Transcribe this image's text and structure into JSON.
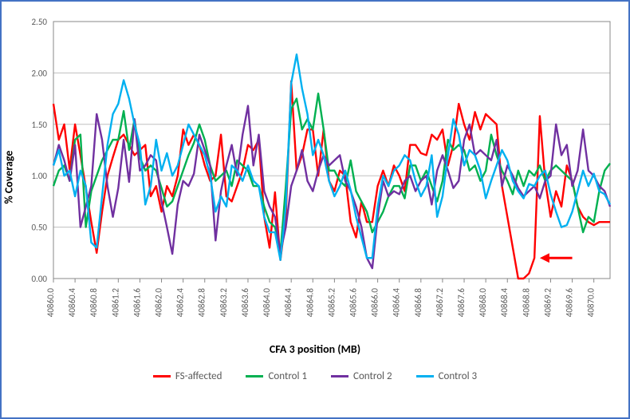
{
  "chart": {
    "type": "line",
    "xlabel": "CFA 3 position (MB)",
    "ylabel": "% Coverage",
    "ylim": [
      0.0,
      2.5
    ],
    "ytick_step": 0.5,
    "yticks": [
      "0.00",
      "0.50",
      "1.00",
      "1.50",
      "2.00",
      "2.50"
    ],
    "x_categories": [
      "40860.0",
      "40860.4",
      "40860.8",
      "40861.2",
      "40861.6",
      "40862.0",
      "40862.4",
      "40862.8",
      "40863.2",
      "40863.6",
      "40864.0",
      "40864.4",
      "40864.8",
      "40865.2",
      "40865.6",
      "40866.0",
      "40866.4",
      "40866.8",
      "40867.2",
      "40867.6",
      "40868.0",
      "40868.4",
      "40868.8",
      "40869.2",
      "40869.6",
      "40870.0"
    ],
    "x_points_per_label": 4,
    "label_fontsize": 14,
    "tick_fontsize": 11,
    "tick_color": "#595959",
    "background_color": "#ffffff",
    "grid_color": "#bfbfbf",
    "border_color": "#888888",
    "outer_border_color": "#4472c4",
    "line_width": 2.4,
    "legend_position": "bottom",
    "arrow": {
      "x_index": 90,
      "y": 0.2,
      "length": 6,
      "color": "#ff0000"
    },
    "series": [
      {
        "name": "FS-affected",
        "color": "#ff0000",
        "values": [
          1.7,
          1.35,
          1.5,
          1.06,
          1.5,
          1.2,
          0.88,
          0.55,
          0.25,
          0.65,
          1.0,
          1.18,
          1.35,
          1.4,
          1.3,
          1.2,
          1.25,
          1.3,
          0.8,
          0.9,
          0.65,
          0.9,
          0.8,
          1.0,
          1.45,
          1.3,
          1.4,
          1.3,
          1.1,
          0.95,
          1.0,
          1.4,
          0.8,
          0.75,
          0.9,
          1.05,
          1.3,
          1.25,
          1.35,
          0.6,
          0.3,
          0.84,
          0.18,
          0.6,
          1.92,
          1.05,
          1.2,
          1.45,
          1.45,
          1.0,
          1.45,
          0.95,
          0.85,
          1.05,
          1.0,
          0.55,
          0.4,
          0.75,
          0.55,
          0.55,
          0.9,
          1.05,
          0.9,
          1.1,
          1.0,
          0.85,
          1.3,
          1.3,
          1.22,
          1.2,
          1.4,
          1.35,
          1.45,
          1.1,
          1.3,
          1.7,
          1.5,
          1.35,
          1.62,
          1.45,
          1.6,
          1.55,
          1.5,
          0.9,
          0.6,
          0.3,
          0.0,
          0.0,
          0.05,
          0.2,
          1.58,
          0.95,
          0.6,
          0.85,
          0.7,
          1.1,
          0.95,
          0.7,
          0.6,
          0.55,
          0.52,
          0.55,
          0.55,
          0.55
        ]
      },
      {
        "name": "Control 1",
        "color": "#00b050",
        "values": [
          0.9,
          1.05,
          1.1,
          0.95,
          1.35,
          1.4,
          0.5,
          0.85,
          1.0,
          1.15,
          1.25,
          1.35,
          1.35,
          1.63,
          1.25,
          1.55,
          1.18,
          1.05,
          1.1,
          1.05,
          0.88,
          0.7,
          0.75,
          0.9,
          1.05,
          1.2,
          1.32,
          1.5,
          1.35,
          1.1,
          0.95,
          1.0,
          1.05,
          0.9,
          1.15,
          1.1,
          1.05,
          0.9,
          0.9,
          0.7,
          0.55,
          0.5,
          0.25,
          0.9,
          1.65,
          1.75,
          1.45,
          1.55,
          1.45,
          1.8,
          1.45,
          1.05,
          1.05,
          0.95,
          0.9,
          1.15,
          0.85,
          0.75,
          0.65,
          0.45,
          0.55,
          0.65,
          0.8,
          0.9,
          0.9,
          0.78,
          1.1,
          1.1,
          0.95,
          1.05,
          0.9,
          0.75,
          0.95,
          1.35,
          1.25,
          1.3,
          1.25,
          1.05,
          1.1,
          0.95,
          1.05,
          1.4,
          1.2,
          1.05,
          0.95,
          0.82,
          1.05,
          0.9,
          1.05,
          1.0,
          1.1,
          0.95,
          1.05,
          1.1,
          1.05,
          1.0,
          0.95,
          0.7,
          0.45,
          0.6,
          0.55,
          0.85,
          1.05,
          1.12
        ]
      },
      {
        "name": "Control 2",
        "color": "#7030a0",
        "values": [
          1.1,
          1.3,
          1.15,
          0.95,
          1.3,
          0.5,
          0.7,
          0.9,
          1.6,
          1.35,
          0.9,
          0.6,
          0.88,
          1.35,
          0.94,
          1.55,
          1.05,
          1.1,
          1.2,
          1.15,
          0.75,
          0.5,
          0.24,
          0.72,
          0.95,
          0.9,
          1.02,
          1.4,
          1.25,
          1.1,
          0.37,
          0.85,
          1.1,
          1.3,
          1.0,
          1.4,
          1.68,
          1.1,
          1.4,
          0.85,
          0.7,
          0.6,
          0.25,
          0.5,
          0.9,
          1.05,
          1.25,
          0.95,
          0.85,
          1.05,
          1.2,
          1.1,
          1.15,
          1.2,
          0.95,
          0.85,
          0.7,
          0.5,
          0.2,
          0.1,
          0.6,
          0.95,
          0.8,
          0.85,
          0.82,
          0.95,
          1.0,
          0.85,
          0.95,
          1.0,
          0.72,
          1.05,
          1.2,
          1.05,
          0.88,
          0.95,
          1.35,
          1.5,
          1.2,
          1.25,
          1.2,
          1.15,
          1.35,
          0.9,
          1.1,
          1.0,
          0.88,
          0.8,
          0.85,
          0.9,
          0.78,
          0.95,
          1.0,
          1.5,
          1.2,
          1.3,
          0.9,
          1.05,
          1.45,
          1.05,
          1.0,
          0.9,
          0.85,
          0.7
        ]
      },
      {
        "name": "Control 3",
        "color": "#00b0f0",
        "values": [
          1.1,
          1.25,
          1.0,
          1.05,
          0.8,
          1.05,
          0.9,
          0.35,
          0.3,
          0.8,
          1.3,
          1.6,
          1.7,
          1.93,
          1.75,
          1.5,
          1.3,
          0.72,
          0.9,
          1.35,
          1.05,
          1.22,
          1.0,
          1.1,
          1.3,
          1.5,
          1.4,
          1.3,
          1.2,
          1.0,
          0.65,
          0.8,
          0.7,
          1.1,
          1.05,
          0.95,
          1.1,
          0.95,
          0.9,
          0.6,
          0.45,
          0.45,
          0.18,
          0.7,
          1.9,
          2.18,
          1.85,
          1.6,
          1.2,
          1.35,
          1.2,
          0.95,
          0.8,
          0.9,
          1.05,
          0.86,
          0.6,
          0.4,
          0.2,
          0.2,
          0.7,
          1.0,
          0.9,
          1.05,
          1.1,
          1.2,
          1.15,
          0.95,
          0.8,
          0.9,
          1.2,
          0.6,
          0.8,
          1.2,
          1.55,
          1.4,
          1.1,
          1.25,
          1.2,
          1.05,
          0.78,
          0.95,
          1.1,
          1.25,
          1.15,
          0.95,
          0.85,
          0.78,
          0.92,
          0.9,
          1.0,
          1.05,
          0.82,
          0.65,
          0.5,
          0.52,
          0.65,
          0.85,
          1.05,
          0.9,
          1.02,
          0.85,
          0.82,
          0.72
        ]
      }
    ]
  }
}
